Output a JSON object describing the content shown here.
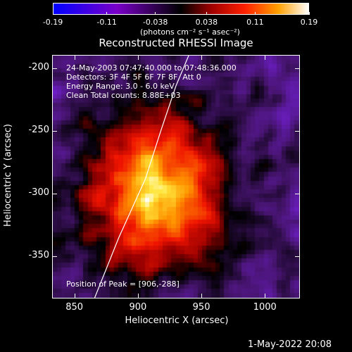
{
  "colorbar": {
    "ticks": [
      "-0.19",
      "-0.11",
      "-0.038",
      "0.038",
      "0.11",
      "0.19"
    ],
    "tick_values": [
      -0.19,
      -0.11,
      -0.038,
      0.038,
      0.11,
      0.19
    ],
    "range": [
      -0.19,
      0.19
    ],
    "unit": "(photons cm⁻² s⁻¹ asec⁻²)"
  },
  "plot": {
    "title": "Reconstructed RHESSI Image",
    "xlabel": "Heliocentric X (arcsec)",
    "ylabel": "Heliocentric Y (arcsec)",
    "xlim": [
      833,
      1027
    ],
    "ylim": [
      -383,
      -190
    ],
    "xticks": [
      "850",
      "900",
      "950",
      "1000"
    ],
    "xtick_values": [
      850,
      900,
      950,
      1000
    ],
    "yticks": [
      "-200",
      "-250",
      "-300",
      "-350"
    ],
    "ytick_values": [
      -200,
      -250,
      -300,
      -350
    ]
  },
  "annotations": {
    "time": "24-May-2003 07:47:40.000 to 07:48:36.000",
    "detectors": "Detectors: 3F 4F 5F 6F 7F 8F, Att 0",
    "energy": "Energy Range: 3.0 - 6.0 keV",
    "clean": "Clean     Total counts: 8.88E+03",
    "peak": "Position of Peak = [906,-288]"
  },
  "limb": {
    "points": [
      [
        866,
        -383
      ],
      [
        885,
        -335
      ],
      [
        906,
        -288
      ],
      [
        918,
        -250
      ],
      [
        930,
        -214
      ],
      [
        940,
        -190
      ]
    ]
  },
  "datestamp": "1-May-2022 20:08",
  "colors": {
    "background": "#000000",
    "limb": "#ffffff"
  }
}
